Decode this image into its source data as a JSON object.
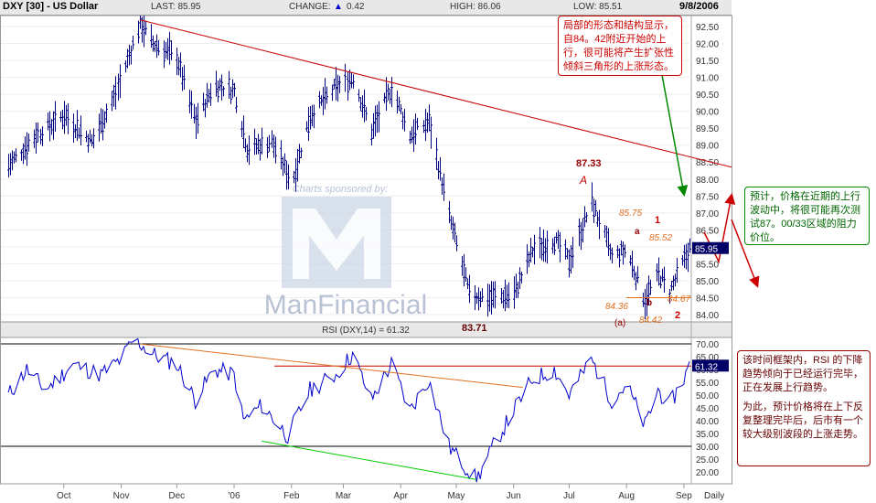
{
  "header": {
    "ticker": "DXY [30] - US Dollar",
    "last": "LAST: 85.95",
    "change_label": "CHANGE:",
    "change_value": "0.42",
    "high": "HIGH: 86.06",
    "low": "LOW: 85.51",
    "date": "9/8/2006"
  },
  "watermark": {
    "sponsor": "Charts sponsored by:",
    "brand": "ManFinancial"
  },
  "rsi": {
    "label": "RSI (DXY,14) = 61.32",
    "last": "61.32"
  },
  "price_badge": "85.95",
  "labels": {
    "peak": "87.33",
    "A": "A",
    "low": "83.71",
    "l8575": "85.75",
    "la": "a",
    "l1": "1",
    "l8552": "85.52",
    "l8436": "84.36",
    "lb": "b",
    "l8467": "84.67",
    "lA2": "(a)",
    "l8442": "84.42",
    "l2": "2"
  },
  "notes": {
    "top": "局部的形态和结构显示，自84。42附近开始的上行，很可能将产生扩张性倾斜三角形的上涨形态。",
    "right": "预计，价格在近期的上行波动中，将很可能再次测试87。00/33区域的阻力价位。",
    "bottom_p1": "该时间框架内，RSI 的下降趋势倾向于已经运行完毕，正在发展上行趋势。",
    "bottom_p2": "为此，预计价格将在上下反复整理完毕后，后市有一个较大级别波段的上涨走势。"
  },
  "colors": {
    "price": "#000080",
    "rsi": "#0000cc",
    "trend_red": "#cc0000",
    "trend_orange": "#e07020",
    "trend_green": "#00cc00",
    "arrow_green": "#008800",
    "badge_bg": "#000066"
  },
  "chart_data": [
    {
      "type": "ohlc",
      "title": "DXY [30] - US Dollar",
      "timeframe": "Daily",
      "x_ticks": [
        "Oct",
        "Nov",
        "Dec",
        "'06",
        "Feb",
        "Mar",
        "Apr",
        "May",
        "Jun",
        "Jul",
        "Aug",
        "Sep",
        "Daily"
      ],
      "y_ticks": [
        "92.50",
        "92.00",
        "91.50",
        "91.00",
        "90.50",
        "90.00",
        "89.50",
        "89.00",
        "88.50",
        "88.00",
        "87.50",
        "87.00",
        "86.50",
        "86.00",
        "85.50",
        "85.00",
        "84.50",
        "84.00"
      ],
      "ylim": [
        83.7,
        92.85
      ],
      "anchors": [
        [
          "2005-09-05",
          88.4
        ],
        [
          "2005-09-20",
          89.3
        ],
        [
          "2005-10-05",
          89.9
        ],
        [
          "2005-10-20",
          89.1
        ],
        [
          "2005-11-01",
          90.4
        ],
        [
          "2005-11-15",
          92.6
        ],
        [
          "2005-11-22",
          92.0
        ],
        [
          "2005-12-05",
          91.6
        ],
        [
          "2005-12-15",
          89.7
        ],
        [
          "2005-12-25",
          90.8
        ],
        [
          "2006-01-05",
          90.6
        ],
        [
          "2006-01-12",
          88.9
        ],
        [
          "2006-01-25",
          89.1
        ],
        [
          "2006-02-05",
          87.9
        ],
        [
          "2006-02-15",
          89.9
        ],
        [
          "2006-03-01",
          90.7
        ],
        [
          "2006-03-10",
          91.0
        ],
        [
          "2006-03-20",
          89.4
        ],
        [
          "2006-03-31",
          90.7
        ],
        [
          "2006-04-10",
          89.3
        ],
        [
          "2006-04-20",
          89.7
        ],
        [
          "2006-05-01",
          86.9
        ],
        [
          "2006-05-12",
          84.6
        ],
        [
          "2006-05-23",
          84.5
        ],
        [
          "2006-06-05",
          84.6
        ],
        [
          "2006-06-15",
          85.9
        ],
        [
          "2006-06-27",
          86.2
        ],
        [
          "2006-07-05",
          85.6
        ],
        [
          "2006-07-17",
          87.33
        ],
        [
          "2006-07-28",
          85.7
        ],
        [
          "2006-08-05",
          85.9
        ],
        [
          "2006-08-15",
          84.42
        ],
        [
          "2006-08-22",
          85.2
        ],
        [
          "2006-08-28",
          84.67
        ],
        [
          "2006-09-04",
          85.5
        ],
        [
          "2006-09-08",
          85.95
        ]
      ],
      "annotations": [
        {
          "text": "87.33",
          "x": "2006-07-18",
          "y": 87.33
        },
        {
          "text": "83.71",
          "x": "2006-05-19",
          "y": 83.71
        },
        {
          "text": "84.42",
          "x": "2006-08-15",
          "y": 84.42
        }
      ]
    },
    {
      "type": "line",
      "title": "RSI (DXY,14) = 61.32",
      "y_ticks": [
        "70.00",
        "65.00",
        "60.00",
        "55.00",
        "50.00",
        "45.00",
        "40.00",
        "35.00",
        "30.00",
        "25.00",
        "20.00"
      ],
      "ylim": [
        16,
        72
      ],
      "reference_lines": [
        70,
        30
      ],
      "anchors": [
        [
          "2005-09-05",
          50
        ],
        [
          "2005-09-15",
          60
        ],
        [
          "2005-09-25",
          52
        ],
        [
          "2005-10-10",
          62
        ],
        [
          "2005-10-25",
          58
        ],
        [
          "2005-11-05",
          64
        ],
        [
          "2005-11-12",
          72
        ],
        [
          "2005-11-22",
          66
        ],
        [
          "2005-12-05",
          62
        ],
        [
          "2005-12-15",
          48
        ],
        [
          "2005-12-25",
          60
        ],
        [
          "2006-01-05",
          58
        ],
        [
          "2006-01-10",
          40
        ],
        [
          "2006-01-20",
          46
        ],
        [
          "2006-02-03",
          34
        ],
        [
          "2006-02-15",
          52
        ],
        [
          "2006-03-01",
          58
        ],
        [
          "2006-03-10",
          66
        ],
        [
          "2006-03-20",
          48
        ],
        [
          "2006-03-31",
          62
        ],
        [
          "2006-04-10",
          44
        ],
        [
          "2006-04-20",
          56
        ],
        [
          "2006-05-01",
          30
        ],
        [
          "2006-05-10",
          22
        ],
        [
          "2006-05-16",
          17
        ],
        [
          "2006-05-25",
          30
        ],
        [
          "2006-06-05",
          44
        ],
        [
          "2006-06-15",
          56
        ],
        [
          "2006-06-27",
          60
        ],
        [
          "2006-07-05",
          50
        ],
        [
          "2006-07-17",
          64
        ],
        [
          "2006-07-28",
          48
        ],
        [
          "2006-08-05",
          54
        ],
        [
          "2006-08-15",
          38
        ],
        [
          "2006-08-22",
          52
        ],
        [
          "2006-08-28",
          46
        ],
        [
          "2006-09-04",
          55
        ],
        [
          "2006-09-08",
          61.32
        ]
      ]
    }
  ]
}
